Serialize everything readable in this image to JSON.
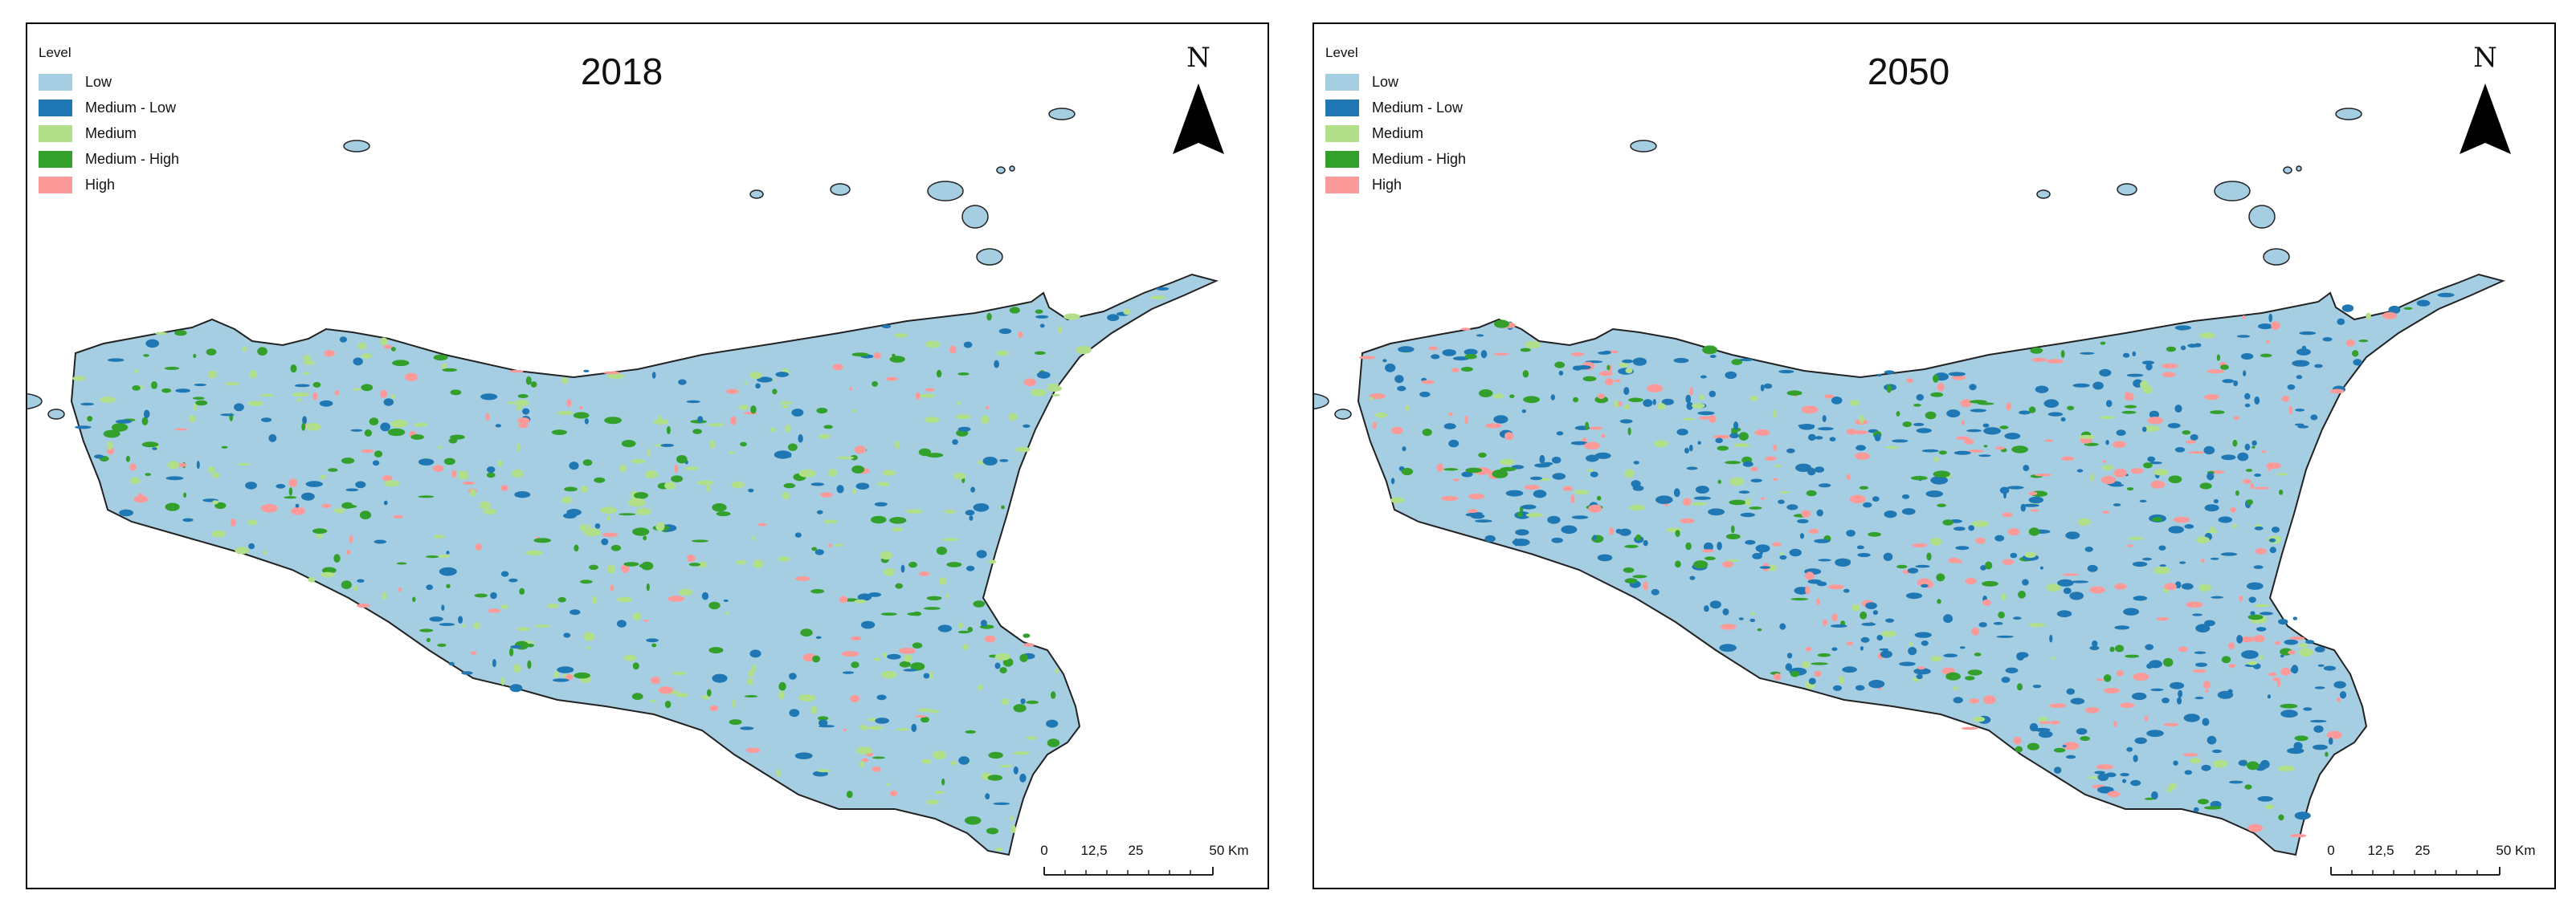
{
  "legend_title": "Level",
  "legend_items": [
    {
      "label": "Low",
      "color": "#a6cee3"
    },
    {
      "label": "Medium - Low",
      "color": "#1f78b4"
    },
    {
      "label": "Medium",
      "color": "#b2df8a"
    },
    {
      "label": "Medium - High",
      "color": "#33a02c"
    },
    {
      "label": "High",
      "color": "#fb9a99"
    }
  ],
  "maps": [
    {
      "title": "2018"
    },
    {
      "title": "2050"
    }
  ],
  "north_label": "N",
  "scale_labels": [
    "0",
    "12,5",
    "25",
    "50 Km"
  ]
}
